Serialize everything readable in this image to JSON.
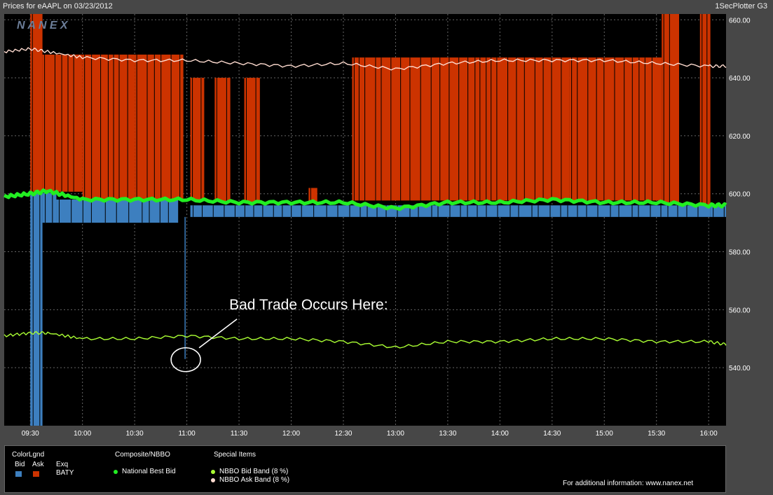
{
  "header": {
    "left_title": "Prices for  eAAPL  on  03/23/2012",
    "right_title": "1SecPlotter G3",
    "watermark": "N A N E X"
  },
  "annotation": {
    "text": "Bad Trade Occurs Here:"
  },
  "legend": {
    "colorlgnd_title": "ColorLgnd",
    "bid_label": "Bid",
    "ask_label": "Ask",
    "exq_label": "Exq",
    "exchange": "BATY",
    "composite_title": "Composite/NBBO",
    "nbb_label": "National Best Bid",
    "special_title": "Special Items",
    "bid_band_label": "NBBO Bid Band (8 %)",
    "ask_band_label": "NBBO Ask Band (8 %)",
    "info_text": "For additional information: www.nanex.net"
  },
  "colors": {
    "plot_bg": "#000000",
    "ask_color": "#cc3300",
    "bid_color": "#3d7fbf",
    "nbb_color": "#22ee22",
    "bid_band_color": "#aaff33",
    "ask_band_color": "#ffdcd0"
  },
  "chart_data": {
    "type": "line",
    "x_ticks": [
      "09:30",
      "10:00",
      "10:30",
      "11:00",
      "11:30",
      "12:00",
      "12:30",
      "13:00",
      "13:30",
      "14:00",
      "14:30",
      "15:00",
      "15:30",
      "16:00"
    ],
    "y_ticks": [
      "540.00",
      "560.00",
      "580.00",
      "600.00",
      "620.00",
      "640.00",
      "660.00"
    ],
    "xlim": [
      "09:15",
      "16:10"
    ],
    "ylim": [
      520,
      662
    ],
    "series": [
      {
        "name": "National Best Bid",
        "x": [
          "09:15",
          "09:30",
          "09:40",
          "10:00",
          "10:30",
          "11:00",
          "11:30",
          "12:00",
          "12:30",
          "13:00",
          "13:30",
          "14:00",
          "14:30",
          "15:00",
          "15:30",
          "16:00",
          "16:10"
        ],
        "values": [
          599,
          600,
          601,
          598,
          598,
          598,
          597,
          597,
          597,
          595,
          597,
          597,
          598,
          597,
          597,
          596,
          596
        ]
      },
      {
        "name": "NBBO Bid Band (8 %)",
        "x": [
          "09:15",
          "09:30",
          "09:40",
          "10:00",
          "10:30",
          "11:00",
          "11:30",
          "12:00",
          "12:30",
          "13:00",
          "13:30",
          "14:00",
          "14:30",
          "15:00",
          "15:30",
          "16:00",
          "16:10"
        ],
        "values": [
          551,
          552,
          552,
          550,
          550,
          551,
          550,
          550,
          549,
          547,
          549,
          549,
          550,
          550,
          549,
          549,
          548
        ]
      },
      {
        "name": "NBBO Ask Band (8 %)",
        "x": [
          "09:15",
          "09:30",
          "09:40",
          "10:00",
          "10:30",
          "11:00",
          "11:30",
          "12:00",
          "12:30",
          "13:00",
          "13:30",
          "14:00",
          "14:30",
          "15:00",
          "15:30",
          "16:00",
          "16:10"
        ],
        "values": [
          649,
          650,
          649,
          647,
          646,
          646,
          645,
          644,
          645,
          643,
          645,
          646,
          646,
          646,
          645,
          644,
          644
        ]
      }
    ],
    "exchange_quotes": {
      "exchange": "BATY",
      "ask_bands": [
        {
          "from": "09:30",
          "to": "09:37",
          "value": 662
        },
        {
          "from": "09:37",
          "to": "10:00",
          "value": 648
        },
        {
          "from": "10:00",
          "to": "10:30",
          "value": 648
        },
        {
          "from": "10:30",
          "to": "10:58",
          "value": 648
        },
        {
          "from": "11:02",
          "to": "11:10",
          "value": 640
        },
        {
          "from": "11:16",
          "to": "11:25",
          "value": 640
        },
        {
          "from": "11:33",
          "to": "11:42",
          "value": 640
        },
        {
          "from": "12:10",
          "to": "12:15",
          "value": 602
        },
        {
          "from": "12:35",
          "to": "14:40",
          "value": 647
        },
        {
          "from": "14:40",
          "to": "15:33",
          "value": 647
        },
        {
          "from": "15:33",
          "to": "15:43",
          "value": 662
        },
        {
          "from": "15:55",
          "to": "16:01",
          "value": 662
        }
      ],
      "bid_bands": [
        {
          "from": "09:30",
          "to": "09:37",
          "value": 520
        },
        {
          "from": "09:37",
          "to": "09:45",
          "value": 590
        },
        {
          "from": "09:45",
          "to": "10:55",
          "value": 590
        },
        {
          "from": "11:02",
          "to": "16:01",
          "value": 592
        },
        {
          "from": "16:01",
          "to": "16:10",
          "value": 592
        }
      ],
      "bad_trade": {
        "x": "10:59",
        "value": 543
      }
    }
  }
}
